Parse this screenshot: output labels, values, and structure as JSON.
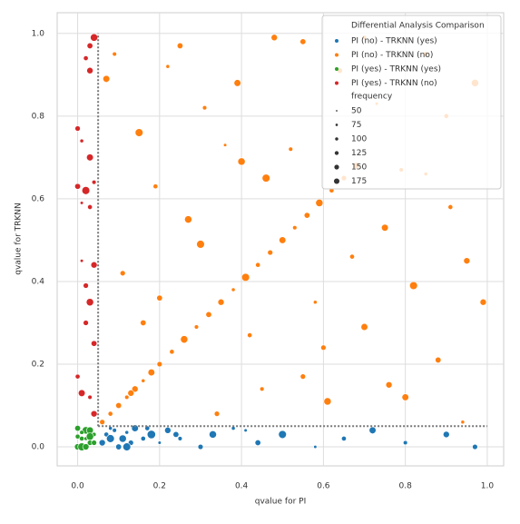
{
  "chart_data": {
    "type": "scatter",
    "xlabel": "qvalue for PI",
    "ylabel": "qvalue for TRKNN",
    "xlim": [
      -0.05,
      1.04
    ],
    "ylim": [
      -0.046,
      1.05
    ],
    "xticks": [
      {
        "value": 0,
        "label": "0.0"
      },
      0.2,
      0.4,
      0.6,
      0.8,
      {
        "value": 1,
        "label": "1.0"
      }
    ],
    "yticks": [
      {
        "value": 0,
        "label": "0.0"
      },
      0.2,
      0.4,
      0.6,
      0.8,
      {
        "value": 1,
        "label": "1.0"
      }
    ],
    "grid": true,
    "thresholds": {
      "x": 0.05,
      "y": 0.05
    },
    "legend": {
      "title": "Differential Analysis Comparison",
      "loc": "upper right",
      "size_title": "frequency",
      "sizes": [
        50,
        75,
        100,
        125,
        150,
        175
      ]
    },
    "series": [
      {
        "name": "PI (no)  - TRKNN (yes)",
        "color": "#1f77b4",
        "x": [
          0.06,
          0.07,
          0.08,
          0.09,
          0.1,
          0.11,
          0.12,
          0.13,
          0.14,
          0.16,
          0.18,
          0.2,
          0.22,
          0.25,
          0.3,
          0.33,
          0.38,
          0.44,
          0.5,
          0.58,
          0.65,
          0.72,
          0.8,
          0.9,
          0.97,
          0.08,
          0.12,
          0.17,
          0.24,
          0.41
        ],
        "y": [
          0.01,
          0.03,
          0.02,
          0.04,
          0.0,
          0.02,
          0.035,
          0.01,
          0.045,
          0.02,
          0.03,
          0.01,
          0.04,
          0.02,
          0.0,
          0.03,
          0.045,
          0.01,
          0.03,
          0.0,
          0.02,
          0.04,
          0.01,
          0.03,
          0.0,
          0.045,
          0.0,
          0.045,
          0.03,
          0.04
        ],
        "sizes": [
          120,
          90,
          150,
          80,
          110,
          140,
          70,
          100,
          130,
          90,
          160,
          60,
          120,
          80,
          100,
          140,
          70,
          110,
          150,
          60,
          90,
          130,
          80,
          120,
          100,
          70,
          150,
          90,
          110,
          60
        ]
      },
      {
        "name": "PI (no)  - TRKNN (no)",
        "color": "#ff7f0e",
        "x": [
          0.06,
          0.08,
          0.1,
          0.12,
          0.14,
          0.16,
          0.18,
          0.2,
          0.23,
          0.26,
          0.29,
          0.32,
          0.35,
          0.38,
          0.41,
          0.44,
          0.47,
          0.5,
          0.53,
          0.56,
          0.59,
          0.62,
          0.65,
          0.68,
          0.07,
          0.09,
          0.11,
          0.15,
          0.13,
          0.19,
          0.22,
          0.25,
          0.27,
          0.31,
          0.34,
          0.36,
          0.39,
          0.42,
          0.46,
          0.48,
          0.52,
          0.55,
          0.58,
          0.61,
          0.64,
          0.67,
          0.7,
          0.73,
          0.76,
          0.79,
          0.82,
          0.85,
          0.88,
          0.91,
          0.94,
          0.97,
          0.99,
          0.45,
          0.6,
          0.75,
          0.9,
          0.3,
          0.2,
          0.85,
          0.95,
          0.55,
          0.4,
          0.7,
          0.8,
          0.16
        ],
        "y": [
          0.06,
          0.08,
          0.1,
          0.12,
          0.14,
          0.16,
          0.18,
          0.2,
          0.23,
          0.26,
          0.29,
          0.32,
          0.35,
          0.38,
          0.41,
          0.44,
          0.47,
          0.5,
          0.53,
          0.56,
          0.59,
          0.62,
          0.65,
          0.68,
          0.89,
          0.95,
          0.42,
          0.76,
          0.13,
          0.63,
          0.92,
          0.97,
          0.55,
          0.82,
          0.08,
          0.73,
          0.88,
          0.27,
          0.65,
          0.99,
          0.72,
          0.98,
          0.35,
          0.11,
          0.91,
          0.46,
          0.29,
          0.83,
          0.15,
          0.67,
          0.39,
          0.95,
          0.21,
          0.58,
          0.06,
          0.88,
          0.35,
          0.14,
          0.24,
          0.53,
          0.8,
          0.49,
          0.36,
          0.66,
          0.45,
          0.17,
          0.69,
          0.99,
          0.12,
          0.3
        ],
        "sizes": [
          100,
          90,
          110,
          80,
          120,
          70,
          130,
          100,
          90,
          140,
          80,
          110,
          120,
          70,
          150,
          90,
          100,
          130,
          80,
          110,
          140,
          90,
          100,
          120,
          130,
          80,
          100,
          150,
          120,
          90,
          70,
          110,
          140,
          80,
          100,
          60,
          130,
          90,
          150,
          120,
          80,
          110,
          70,
          140,
          100,
          90,
          130,
          60,
          120,
          80,
          150,
          100,
          110,
          90,
          70,
          140,
          120,
          80,
          100,
          130,
          90,
          150,
          110,
          70,
          120,
          100,
          140,
          80,
          130,
          110
        ]
      },
      {
        "name": "PI (yes) - TRKNN (yes)",
        "color": "#2ca02c",
        "x": [
          0.0,
          0.01,
          0.02,
          0.03,
          0.04,
          0.0,
          0.01,
          0.02,
          0.03,
          0.04,
          0.0,
          0.02,
          0.01,
          0.03
        ],
        "y": [
          0.0,
          0.02,
          0.04,
          0.01,
          0.03,
          0.045,
          0.0,
          0.02,
          0.04,
          0.01,
          0.025,
          0.0,
          0.035,
          0.025
        ],
        "sizes": [
          120,
          90,
          140,
          100,
          80,
          110,
          150,
          70,
          130,
          100,
          90,
          120,
          80,
          140
        ]
      },
      {
        "name": "PI (yes) - TRKNN (no)",
        "color": "#d62728",
        "x": [
          0.03,
          0.04,
          0.02,
          0.03,
          0.0,
          0.01,
          0.03,
          0.04,
          0.02,
          0.0,
          0.03,
          0.01,
          0.04,
          0.02,
          0.03,
          0.0,
          0.01,
          0.03,
          0.04,
          0.02,
          0.04,
          0.01
        ],
        "y": [
          0.97,
          0.99,
          0.94,
          0.91,
          0.77,
          0.74,
          0.7,
          0.64,
          0.62,
          0.63,
          0.58,
          0.45,
          0.44,
          0.39,
          0.35,
          0.17,
          0.13,
          0.12,
          0.25,
          0.3,
          0.08,
          0.59
        ],
        "sizes": [
          110,
          140,
          90,
          120,
          100,
          70,
          130,
          80,
          150,
          110,
          90,
          60,
          120,
          100,
          140,
          90,
          130,
          80,
          110,
          100,
          120,
          60
        ]
      }
    ]
  }
}
